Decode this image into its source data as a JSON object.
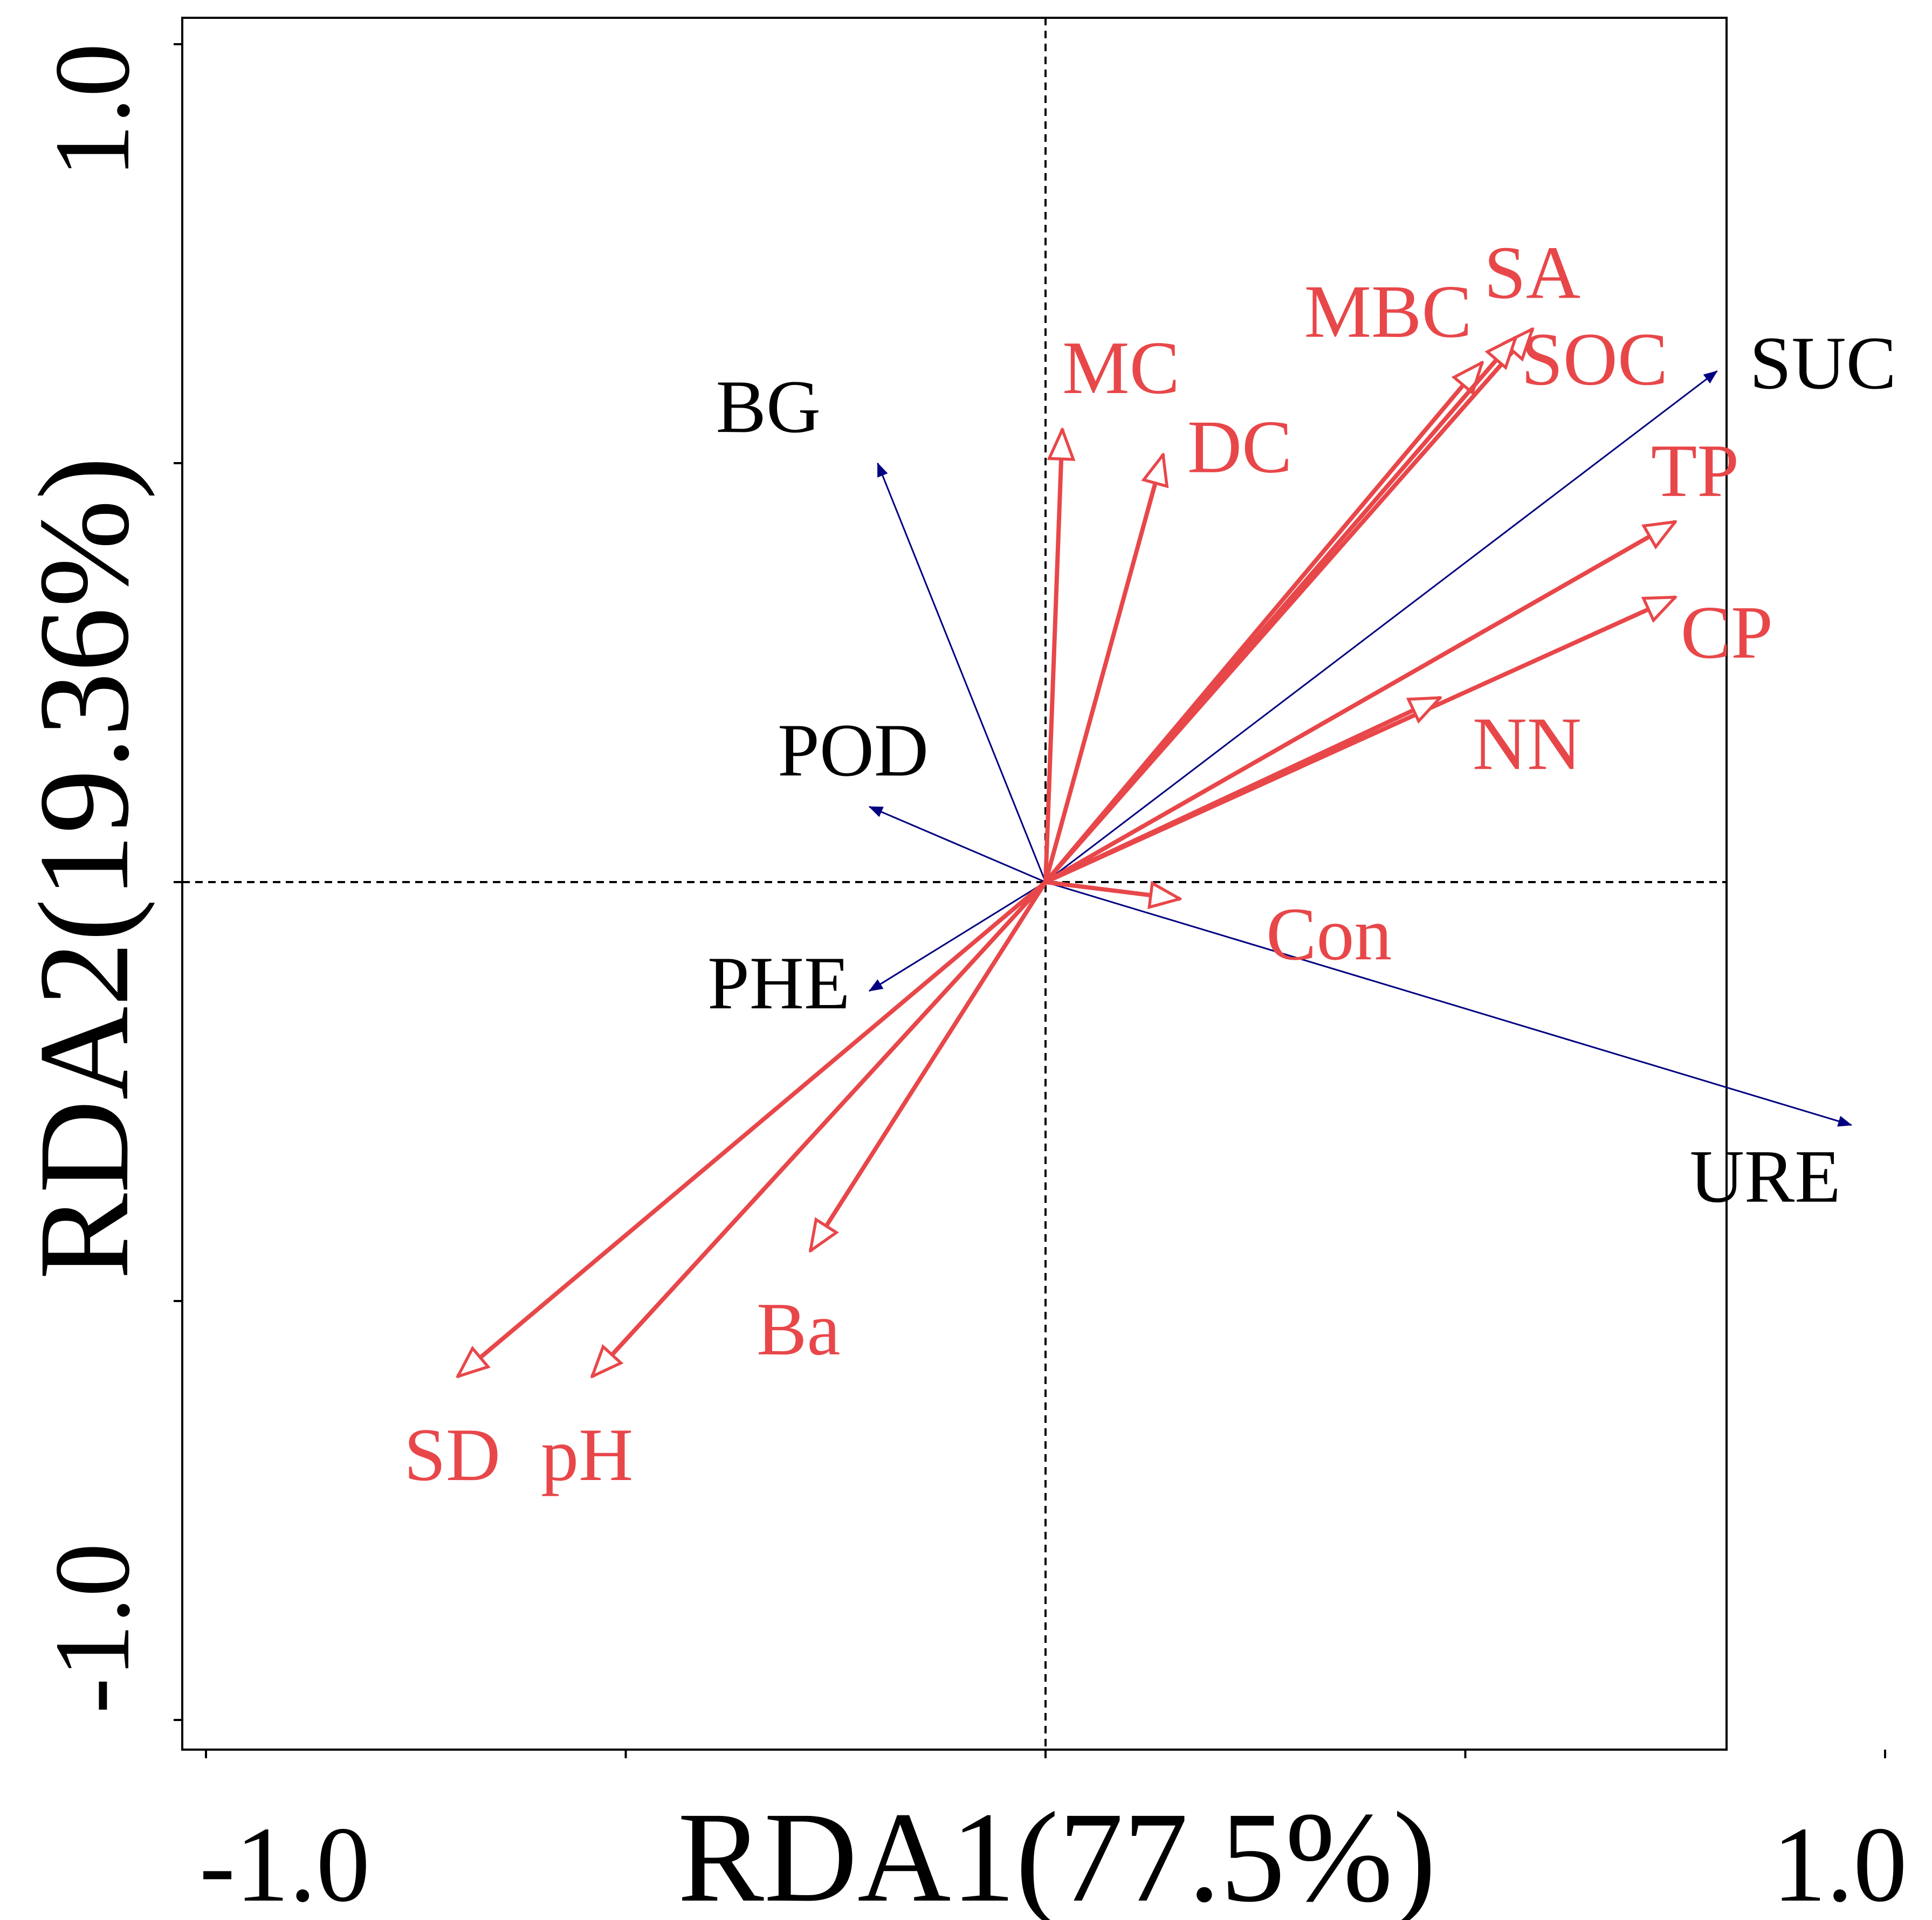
{
  "chart_data": {
    "type": "biplot",
    "xlabel": "RDA1(77.5%)",
    "ylabel": "RDA2(19.36%)",
    "xlim": [
      -1.05,
      1.0
    ],
    "ylim": [
      -1.0,
      1.05
    ],
    "x_tick_labels": [
      {
        "value": -1.0,
        "label": "-1.0"
      },
      {
        "value": 1.0,
        "label": "1.0"
      }
    ],
    "y_tick_labels": [
      {
        "value": 1.0,
        "label": "1.0"
      },
      {
        "value": -1.0,
        "label": "-1.0"
      }
    ],
    "x_ticks": [
      -1.0,
      -0.5,
      0.0,
      0.5,
      1.0
    ],
    "y_ticks": [
      -1.0,
      -0.5,
      0.0,
      0.5,
      1.0
    ],
    "zero_lines": true,
    "colors": {
      "response": "#000080",
      "explanatory": "#e8474a",
      "response_label": "#000000",
      "explanatory_label": "#e8474a"
    },
    "series": [
      {
        "name": "response",
        "arrow_style": "thin-filled",
        "vectors": [
          {
            "name": "BG",
            "x": -0.2,
            "y": 0.5
          },
          {
            "name": "POD",
            "x": -0.21,
            "y": 0.09
          },
          {
            "name": "PHE",
            "x": -0.21,
            "y": -0.13
          },
          {
            "name": "SUC",
            "x": 0.8,
            "y": 0.61
          },
          {
            "name": "URE",
            "x": 0.96,
            "y": -0.29
          }
        ]
      },
      {
        "name": "explanatory",
        "arrow_style": "thick-open",
        "vectors": [
          {
            "name": "MC",
            "x": 0.02,
            "y": 0.54
          },
          {
            "name": "DC",
            "x": 0.14,
            "y": 0.51
          },
          {
            "name": "MBC",
            "x": 0.52,
            "y": 0.62
          },
          {
            "name": "SA",
            "x": 0.58,
            "y": 0.66
          },
          {
            "name": "SOC",
            "x": 0.56,
            "y": 0.65
          },
          {
            "name": "TP",
            "x": 0.75,
            "y": 0.43
          },
          {
            "name": "CP",
            "x": 0.75,
            "y": 0.34
          },
          {
            "name": "NN",
            "x": 0.47,
            "y": 0.22
          },
          {
            "name": "Con",
            "x": 0.16,
            "y": -0.02
          },
          {
            "name": "Ba",
            "x": -0.28,
            "y": -0.44
          },
          {
            "name": "SD",
            "x": -0.7,
            "y": -0.59
          },
          {
            "name": "pH",
            "x": -0.54,
            "y": -0.59
          }
        ]
      }
    ]
  }
}
